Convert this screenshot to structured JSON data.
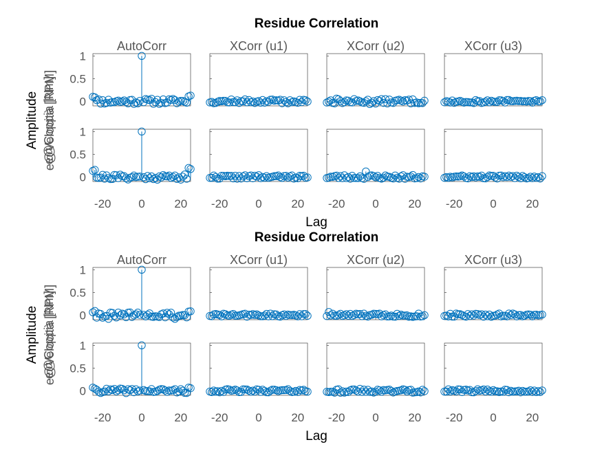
{
  "chart_data": [
    {
      "type": "stem",
      "title": "Residue Correlation",
      "column_titles": [
        "AutoCorr",
        "XCorr (u1)",
        "XCorr (u2)",
        "XCorr (u3)"
      ],
      "row_labels": [
        "e@Velocità [RPM]",
        "e@Coppia [Nm]"
      ],
      "xlabel": "Lag",
      "ylabel": "Amplitude",
      "xlim": [
        -25,
        25
      ],
      "xticks": [
        "-20",
        "0",
        "20"
      ],
      "ylim": [
        -0.1,
        1.05
      ],
      "yticks": [
        "0",
        "0.5",
        "1"
      ],
      "panels": [
        [
          {
            "seed": 11,
            "amp": 0.06,
            "edge": 0.14,
            "peak": 1.0
          },
          {
            "seed": 12,
            "amp": 0.045
          },
          {
            "seed": 13,
            "amp": 0.05,
            "extra": [
              [
                -3,
                -0.06
              ],
              [
                -20,
                0.06
              ]
            ]
          },
          {
            "seed": 14,
            "amp": 0.04
          }
        ],
        [
          {
            "seed": 21,
            "amp": 0.06,
            "edge": 0.2,
            "peak": 1.0
          },
          {
            "seed": 22,
            "amp": 0.04
          },
          {
            "seed": 23,
            "amp": 0.045,
            "extra": [
              [
                -5,
                0.12
              ]
            ]
          },
          {
            "seed": 24,
            "amp": 0.035
          }
        ]
      ]
    },
    {
      "type": "stem",
      "title": "Residue Correlation",
      "column_titles": [
        "AutoCorr",
        "XCorr (u1)",
        "XCorr (u2)",
        "XCorr (u3)"
      ],
      "row_labels": [
        "e@Velocità [RPM]",
        "e@Coppia [Nm]"
      ],
      "xlabel": "Lag",
      "ylabel": "Amplitude",
      "xlim": [
        -25,
        25
      ],
      "xticks": [
        "-20",
        "0",
        "20"
      ],
      "ylim": [
        -0.1,
        1.05
      ],
      "yticks": [
        "0",
        "0.5",
        "1"
      ],
      "panels": [
        [
          {
            "seed": 31,
            "amp": 0.06,
            "edge": 0.1,
            "peak": 1.0,
            "extra": [
              [
                -17,
                -0.08
              ],
              [
                17,
                -0.08
              ]
            ]
          },
          {
            "seed": 32,
            "amp": 0.035
          },
          {
            "seed": 33,
            "amp": 0.04,
            "extra": [
              [
                -24,
                0.07
              ]
            ]
          },
          {
            "seed": 34,
            "amp": 0.035
          }
        ],
        [
          {
            "seed": 41,
            "amp": 0.05,
            "edge": 0.07,
            "peak": 1.0
          },
          {
            "seed": 42,
            "amp": 0.035
          },
          {
            "seed": 43,
            "amp": 0.045
          },
          {
            "seed": 44,
            "amp": 0.035
          }
        ]
      ]
    }
  ]
}
